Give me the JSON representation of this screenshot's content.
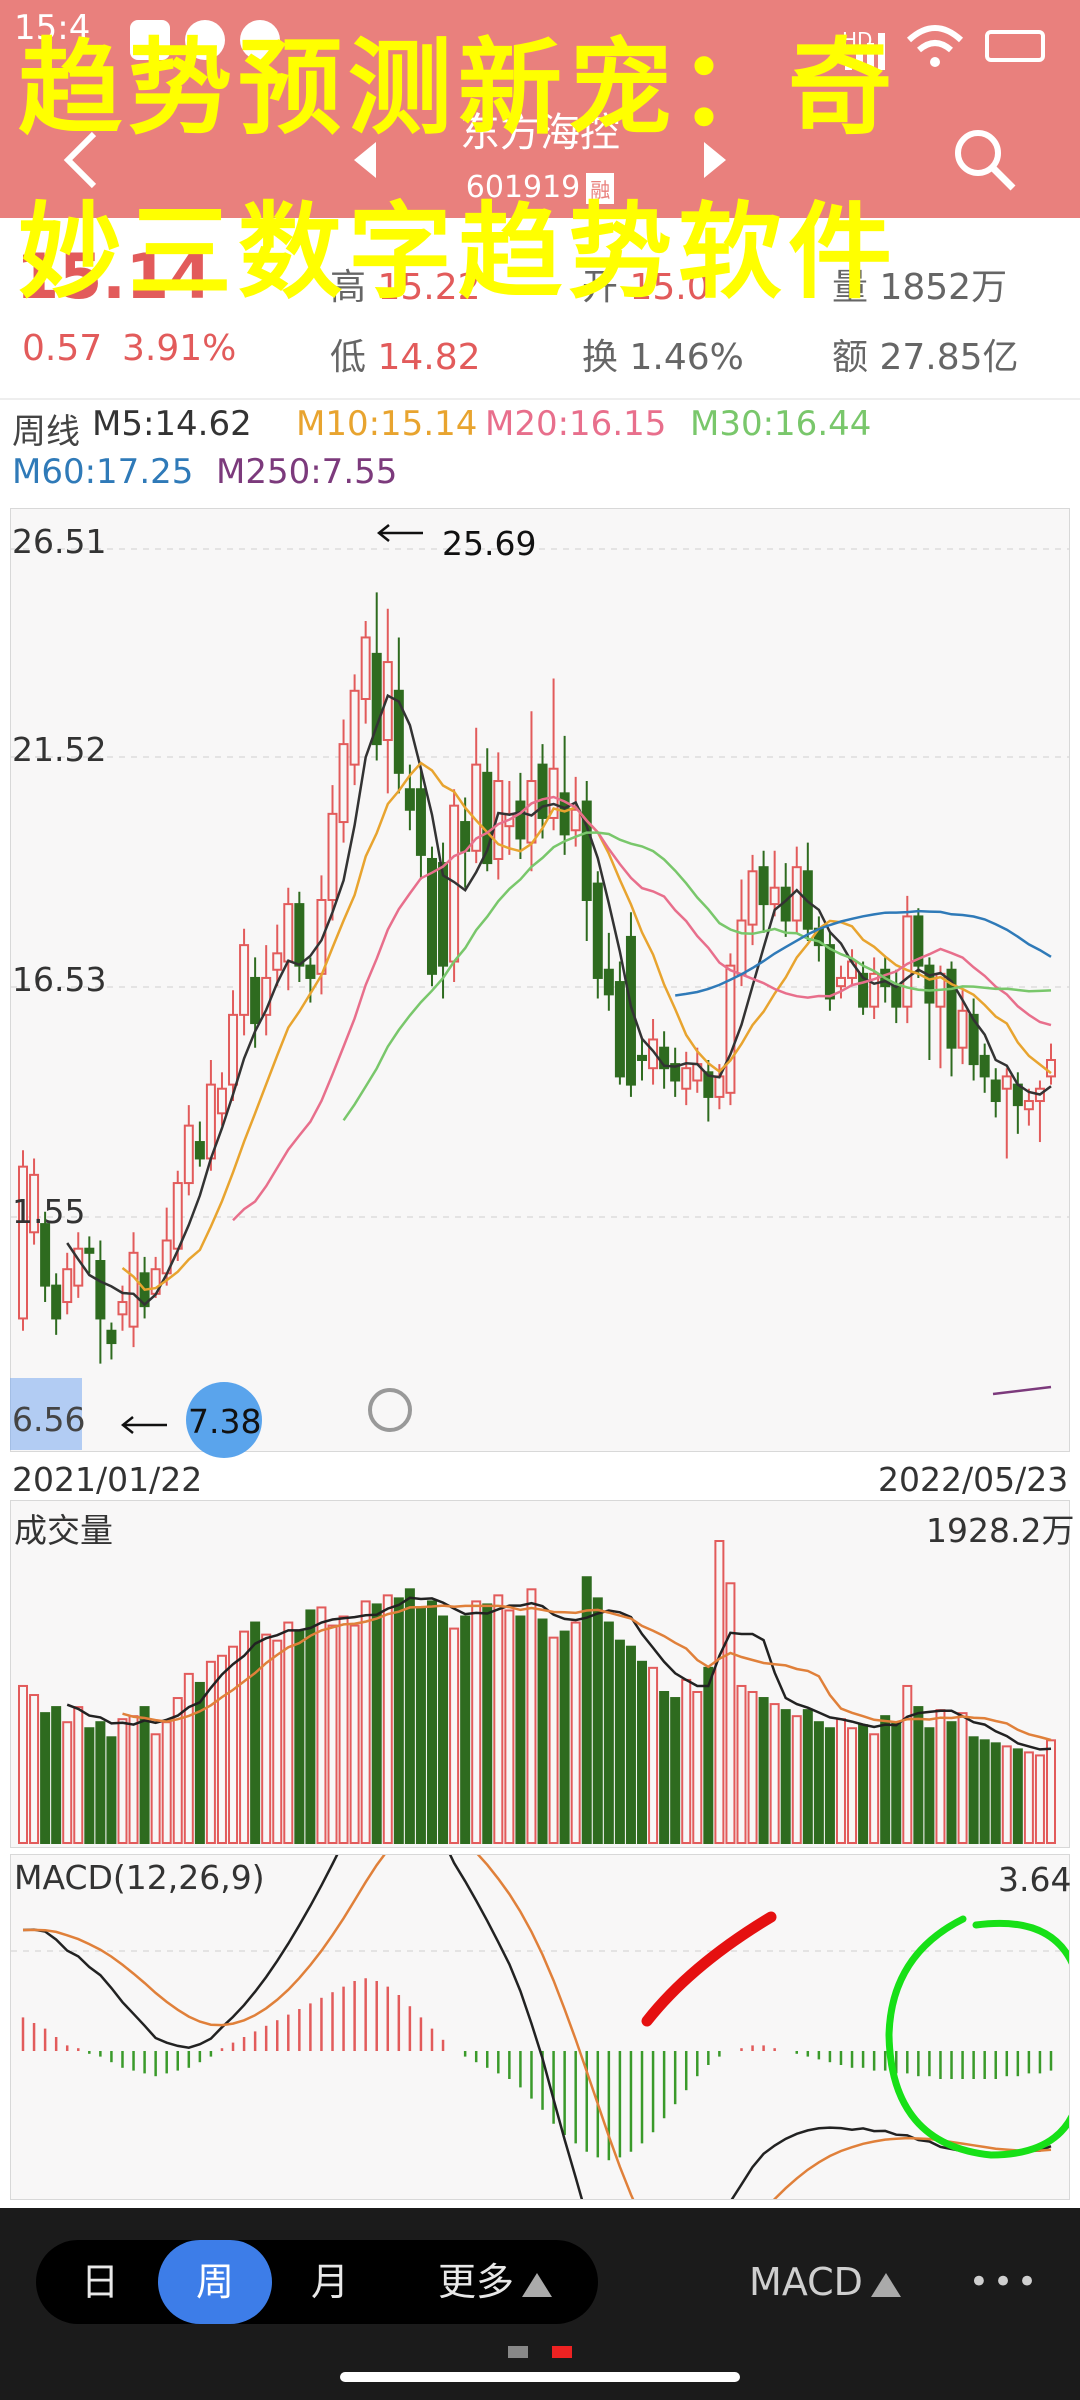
{
  "status_bar": {
    "time": "15:4",
    "network": "HD"
  },
  "header": {
    "stock_name": "东方海控",
    "stock_code": "601919",
    "badge": "融"
  },
  "overlay_title": {
    "line1": "趋势预测新宠：奇",
    "line2": "妙三数字趋势软件"
  },
  "quote": {
    "price": "15.14",
    "change": "0.57",
    "change_pct": "3.91%",
    "high_label": "高",
    "high": "15.22",
    "low_label": "低",
    "low": "14.82",
    "open_label": "开",
    "open": "15.0",
    "turnover_label": "换",
    "turnover": "1.46%",
    "volume_label": "量",
    "volume": "1852万",
    "amount_label": "额",
    "amount": "27.85亿"
  },
  "ma_legend": {
    "period": "周线",
    "items": [
      {
        "label": "M5:14.62",
        "color": "#333333"
      },
      {
        "label": "M10:15.14",
        "color": "#e8a42f"
      },
      {
        "label": "M20:16.15",
        "color": "#e86f8c"
      },
      {
        "label": "M30:16.44",
        "color": "#79c76b"
      },
      {
        "label": "M60:17.25",
        "color": "#2f7ab8"
      },
      {
        "label": "M250:7.55",
        "color": "#7c3a7c"
      }
    ]
  },
  "price_chart": {
    "y_labels": [
      "26.51",
      "21.52",
      "16.53",
      "1.55",
      "6.56"
    ],
    "high_annotation": "25.69",
    "low_annotation": "7.38",
    "start_date": "2021/01/22",
    "end_date": "2022/05/23",
    "candles": [
      [
        8.5,
        12.2,
        12.6,
        8.2
      ],
      [
        10.6,
        12.0,
        12.4,
        10.3
      ],
      [
        10.8,
        9.3,
        11.1,
        8.9
      ],
      [
        9.3,
        8.5,
        9.6,
        8.1
      ],
      [
        8.9,
        9.7,
        10.1,
        8.6
      ],
      [
        9.3,
        10.2,
        10.6,
        9.0
      ],
      [
        10.2,
        10.1,
        10.5,
        9.6
      ],
      [
        9.9,
        8.5,
        10.4,
        7.4
      ],
      [
        8.2,
        7.9,
        8.4,
        7.5
      ],
      [
        8.6,
        8.9,
        9.3,
        8.2
      ],
      [
        8.3,
        10.1,
        10.6,
        7.8
      ],
      [
        9.6,
        8.8,
        10.0,
        8.5
      ],
      [
        9.1,
        9.7,
        10.0,
        9.0
      ],
      [
        9.6,
        10.4,
        11.2,
        9.3
      ],
      [
        10.2,
        11.8,
        12.1,
        9.9
      ],
      [
        11.8,
        13.2,
        13.7,
        11.5
      ],
      [
        12.8,
        12.4,
        13.3,
        12.2
      ],
      [
        12.4,
        14.2,
        14.8,
        12.1
      ],
      [
        13.5,
        14.1,
        14.5,
        13.2
      ],
      [
        14.2,
        15.9,
        16.5,
        13.8
      ],
      [
        15.9,
        17.6,
        18.0,
        15.4
      ],
      [
        16.8,
        15.7,
        17.3,
        15.1
      ],
      [
        15.9,
        16.8,
        17.6,
        15.4
      ],
      [
        17.0,
        17.4,
        18.1,
        16.6
      ],
      [
        17.2,
        18.6,
        19.0,
        16.5
      ],
      [
        18.6,
        17.1,
        18.9,
        16.7
      ],
      [
        17.1,
        16.8,
        17.3,
        16.2
      ],
      [
        16.9,
        18.7,
        19.3,
        16.4
      ],
      [
        18.7,
        20.8,
        21.5,
        18.2
      ],
      [
        20.6,
        22.5,
        23.1,
        20.1
      ],
      [
        22.0,
        23.8,
        24.2,
        21.5
      ],
      [
        23.6,
        25.1,
        25.5,
        23.0
      ],
      [
        24.7,
        22.5,
        26.2,
        22.1
      ],
      [
        22.6,
        24.5,
        25.8,
        21.3
      ],
      [
        23.8,
        21.8,
        25.1,
        21.3
      ],
      [
        21.4,
        20.9,
        22.0,
        20.4
      ],
      [
        21.4,
        19.8,
        21.9,
        19.2
      ],
      [
        19.7,
        16.9,
        20.0,
        16.6
      ],
      [
        19.6,
        17.1,
        20.1,
        16.3
      ],
      [
        17.2,
        21.0,
        21.4,
        16.7
      ],
      [
        20.6,
        19.9,
        21.2,
        19.0
      ],
      [
        19.9,
        22.0,
        22.9,
        19.6
      ],
      [
        21.8,
        19.6,
        22.4,
        19.4
      ],
      [
        19.7,
        21.6,
        22.3,
        19.2
      ],
      [
        20.5,
        20.8,
        21.6,
        19.8
      ],
      [
        21.1,
        20.2,
        21.8,
        19.7
      ],
      [
        20.1,
        21.6,
        23.3,
        19.4
      ],
      [
        22.0,
        20.7,
        22.5,
        20.2
      ],
      [
        20.7,
        21.9,
        24.1,
        20.4
      ],
      [
        21.3,
        20.3,
        22.7,
        19.8
      ],
      [
        20.4,
        20.9,
        21.7,
        20.0
      ],
      [
        21.1,
        18.7,
        21.6,
        17.7
      ],
      [
        19.1,
        16.8,
        19.4,
        16.3
      ],
      [
        17.0,
        16.4,
        17.9,
        16.0
      ],
      [
        16.7,
        14.4,
        17.2,
        14.2
      ],
      [
        17.8,
        14.2,
        18.4,
        13.9
      ],
      [
        14.9,
        14.8,
        15.3,
        14.3
      ],
      [
        14.6,
        15.3,
        15.8,
        14.2
      ],
      [
        15.1,
        14.6,
        15.5,
        14.1
      ],
      [
        14.7,
        14.3,
        15.1,
        13.9
      ],
      [
        14.1,
        14.6,
        15.0,
        13.7
      ],
      [
        14.3,
        14.7,
        15.1,
        14.0
      ],
      [
        14.5,
        13.9,
        14.8,
        13.3
      ],
      [
        13.9,
        14.4,
        14.7,
        13.6
      ],
      [
        14.0,
        17.1,
        17.4,
        13.7
      ],
      [
        16.9,
        18.2,
        19.2,
        16.6
      ],
      [
        18.1,
        19.4,
        19.8,
        17.6
      ],
      [
        19.5,
        18.6,
        19.9,
        17.9
      ],
      [
        18.6,
        19.0,
        19.9,
        18.3
      ],
      [
        19.0,
        18.2,
        19.6,
        17.8
      ],
      [
        18.2,
        19.5,
        20.0,
        17.9
      ],
      [
        19.4,
        18.0,
        20.1,
        17.7
      ],
      [
        18.0,
        17.6,
        18.3,
        17.2
      ],
      [
        17.6,
        16.3,
        17.9,
        16.0
      ],
      [
        16.6,
        16.8,
        17.1,
        16.3
      ],
      [
        16.8,
        17.2,
        17.5,
        16.6
      ],
      [
        16.9,
        16.1,
        17.2,
        15.9
      ],
      [
        16.1,
        16.9,
        17.3,
        15.8
      ],
      [
        17.0,
        16.6,
        17.3,
        16.2
      ],
      [
        16.6,
        16.1,
        17.0,
        15.7
      ],
      [
        16.1,
        18.3,
        18.8,
        15.7
      ],
      [
        18.3,
        17.1,
        18.5,
        16.8
      ],
      [
        17.1,
        16.2,
        17.3,
        14.8
      ],
      [
        16.1,
        16.9,
        17.1,
        14.6
      ],
      [
        17.0,
        15.1,
        17.2,
        14.4
      ],
      [
        15.1,
        16.0,
        16.5,
        14.7
      ],
      [
        15.9,
        14.7,
        16.3,
        14.3
      ],
      [
        14.9,
        14.4,
        15.2,
        14.0
      ],
      [
        14.3,
        13.8,
        14.6,
        13.4
      ],
      [
        14.1,
        14.4,
        14.6,
        12.4
      ],
      [
        14.2,
        13.7,
        14.5,
        13.0
      ],
      [
        13.6,
        13.8,
        14.1,
        13.2
      ],
      [
        13.8,
        14.1,
        14.3,
        12.8
      ],
      [
        14.4,
        14.8,
        15.2,
        14.2
      ]
    ]
  },
  "volume_chart": {
    "title": "成交量",
    "max_label": "1928.2万",
    "values": [
      52,
      49,
      43,
      45,
      40,
      45,
      38,
      40,
      35,
      41,
      42,
      45,
      36,
      40,
      48,
      56,
      53,
      60,
      62,
      65,
      70,
      73,
      69,
      67,
      73,
      70,
      77,
      78,
      72,
      75,
      72,
      80,
      79,
      82,
      81,
      84,
      78,
      80,
      75,
      71,
      75,
      80,
      79,
      82,
      77,
      75,
      84,
      74,
      68,
      70,
      73,
      88,
      81,
      73,
      67,
      65,
      60,
      58,
      50,
      48,
      54,
      50,
      58,
      100,
      86,
      52,
      50,
      48,
      46,
      44,
      42,
      44,
      40,
      38,
      41,
      38,
      39,
      36,
      42,
      40,
      52,
      45,
      38,
      44,
      40,
      43,
      35,
      34,
      33,
      32,
      31,
      30,
      29,
      34
    ]
  },
  "macd_chart": {
    "title": "MACD(12,26,9)",
    "max_label": "3.64",
    "hist": [
      1.2,
      1.0,
      0.8,
      0.5,
      0.2,
      0.1,
      -0.1,
      -0.2,
      -0.4,
      -0.6,
      -0.7,
      -0.8,
      -0.9,
      -0.8,
      -0.7,
      -0.6,
      -0.4,
      -0.2,
      0.1,
      0.3,
      0.5,
      0.7,
      0.9,
      1.1,
      1.3,
      1.5,
      1.7,
      1.9,
      2.1,
      2.3,
      2.5,
      2.6,
      2.5,
      2.3,
      2.0,
      1.6,
      1.2,
      0.8,
      0.4,
      0.0,
      -0.2,
      -0.4,
      -0.6,
      -0.8,
      -1.0,
      -1.3,
      -1.7,
      -2.1,
      -2.6,
      -3.0,
      -3.3,
      -3.6,
      -3.8,
      -3.9,
      -3.8,
      -3.6,
      -3.3,
      -2.9,
      -2.4,
      -1.9,
      -1.4,
      -0.9,
      -0.5,
      -0.2,
      0.0,
      0.1,
      0.2,
      0.2,
      0.1,
      0.0,
      -0.1,
      -0.2,
      -0.3,
      -0.4,
      -0.5,
      -0.6,
      -0.6,
      -0.7,
      -0.7,
      -0.8,
      -0.8,
      -0.9,
      -0.9,
      -1.0,
      -1.0,
      -1.0,
      -1.0,
      -1.0,
      -1.0,
      -0.9,
      -0.9,
      -0.8,
      -0.8,
      -0.7
    ]
  },
  "bottom_bar": {
    "periods": [
      "日",
      "周",
      "月",
      "更多"
    ],
    "active": "周",
    "indicator": "MACD",
    "more": "•••"
  }
}
